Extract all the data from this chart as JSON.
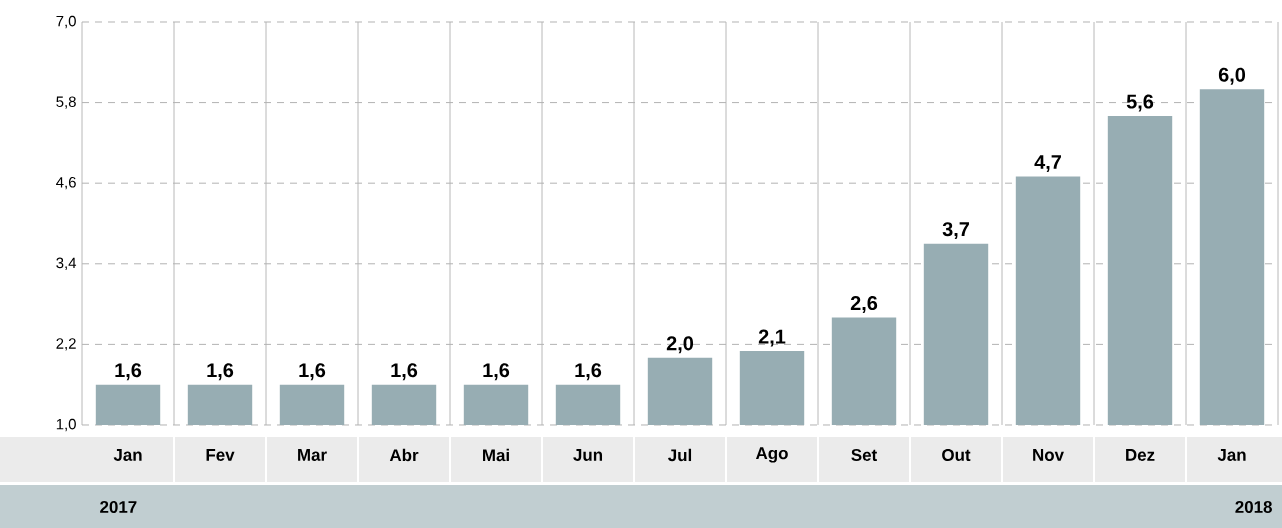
{
  "chart_data": {
    "type": "bar",
    "categories": [
      "Jan",
      "Fev",
      "Mar",
      "Abr",
      "Mai",
      "Jun",
      "Jul",
      "Ago",
      "Set",
      "Out",
      "Nov",
      "Dez",
      "Jan"
    ],
    "values": [
      1.6,
      1.6,
      1.6,
      1.6,
      1.6,
      1.6,
      2.0,
      2.1,
      2.6,
      3.7,
      4.7,
      5.6,
      6.0
    ],
    "value_labels": [
      "1,6",
      "1,6",
      "1,6",
      "1,6",
      "1,6",
      "1,6",
      "2,0",
      "2,1",
      "2,6",
      "3,7",
      "4,7",
      "5,6",
      "6,0"
    ],
    "color": "#97adb3",
    "ylim": [
      1,
      7
    ],
    "yticks": [
      {
        "value": 1,
        "label": "1,0"
      },
      {
        "value": 2.2,
        "label": "2,2"
      },
      {
        "value": 3.4,
        "label": "3,4"
      },
      {
        "value": 4.6,
        "label": "4,6"
      },
      {
        "value": 5.8,
        "label": "5,8"
      },
      {
        "value": 7,
        "label": "7,0"
      }
    ],
    "grid": true,
    "annotations": [
      "2017",
      "2018"
    ]
  }
}
